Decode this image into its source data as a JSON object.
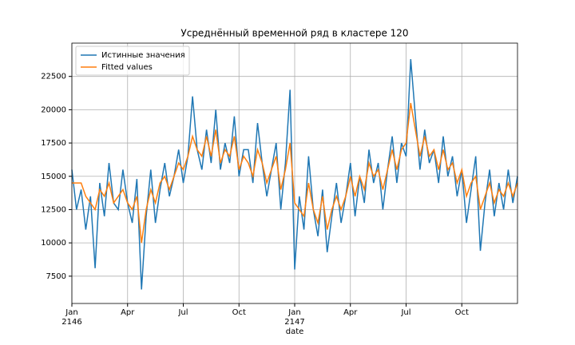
{
  "chart_data": {
    "type": "line",
    "title": "Усреднённый временной ряд в кластере 120",
    "xlabel": "date",
    "x": [
      0,
      0.25,
      0.5,
      0.75,
      1,
      1.25,
      1.5,
      1.75,
      2,
      2.25,
      2.5,
      2.75,
      3,
      3.25,
      3.5,
      3.75,
      4,
      4.25,
      4.5,
      4.75,
      5,
      5.25,
      5.5,
      5.75,
      6,
      6.25,
      6.5,
      6.75,
      7,
      7.25,
      7.5,
      7.75,
      8,
      8.25,
      8.5,
      8.75,
      9,
      9.25,
      9.5,
      9.75,
      10,
      10.25,
      10.5,
      10.75,
      11,
      11.25,
      11.5,
      11.75,
      12,
      12.25,
      12.5,
      12.75,
      13,
      13.25,
      13.5,
      13.75,
      14,
      14.25,
      14.5,
      14.75,
      15,
      15.25,
      15.5,
      15.75,
      16,
      16.25,
      16.5,
      16.75,
      17,
      17.25,
      17.5,
      17.75,
      18,
      18.25,
      18.5,
      18.75,
      19,
      19.25,
      19.5,
      19.75,
      20,
      20.25,
      20.5,
      20.75,
      21,
      21.25,
      21.5,
      21.75,
      22,
      22.25,
      22.5,
      22.75,
      23,
      23.25,
      23.5,
      23.75,
      24
    ],
    "series": [
      {
        "name": "Истинные значения",
        "color": "#1f77b4",
        "values": [
          15500,
          12500,
          14000,
          11000,
          13500,
          8100,
          14500,
          12000,
          16000,
          13000,
          12500,
          15500,
          13000,
          11500,
          14800,
          6500,
          12000,
          15500,
          11500,
          14000,
          16000,
          13500,
          15000,
          17000,
          14500,
          16500,
          21000,
          17000,
          15500,
          18500,
          16000,
          20000,
          15500,
          17500,
          16000,
          19500,
          15000,
          17000,
          17000,
          14500,
          19000,
          16000,
          13500,
          15500,
          17500,
          12500,
          16000,
          21500,
          8000,
          13500,
          11000,
          16500,
          12500,
          10500,
          14000,
          9300,
          12000,
          14500,
          11500,
          13500,
          16000,
          12000,
          15000,
          13000,
          17000,
          14500,
          16000,
          12500,
          15500,
          18000,
          14500,
          17500,
          16500,
          23800,
          19500,
          15500,
          18500,
          16000,
          17000,
          14500,
          18000,
          15000,
          16500,
          13500,
          15500,
          11500,
          14000,
          16500,
          9400,
          13000,
          15500,
          12000,
          14500,
          12500,
          15500,
          13000,
          15000
        ]
      },
      {
        "name": "Fitted values",
        "color": "#ff7f0e",
        "values": [
          14500,
          14500,
          14500,
          13500,
          13000,
          12500,
          14000,
          13500,
          14500,
          13000,
          13500,
          14000,
          13000,
          12500,
          13500,
          10000,
          12500,
          14000,
          13000,
          14500,
          15000,
          14000,
          15000,
          16000,
          15500,
          16500,
          18000,
          17000,
          16500,
          18000,
          16500,
          18500,
          16000,
          17000,
          16500,
          18000,
          15500,
          16500,
          16000,
          15000,
          17000,
          16000,
          14500,
          15500,
          16500,
          14000,
          15500,
          17500,
          13000,
          12500,
          12000,
          14500,
          12500,
          11500,
          13500,
          11000,
          12500,
          13500,
          12500,
          13500,
          15000,
          13500,
          15000,
          14000,
          16000,
          15000,
          15500,
          14000,
          15500,
          17000,
          15500,
          17000,
          17500,
          20500,
          18500,
          16500,
          18000,
          16500,
          17000,
          15500,
          17000,
          15500,
          16000,
          14500,
          15500,
          13500,
          14500,
          15000,
          12500,
          13500,
          14500,
          13000,
          14000,
          13500,
          14500,
          13500,
          14500
        ]
      }
    ],
    "xlim": [
      0,
      24
    ],
    "xticks": [
      {
        "value": 0,
        "label": "Jan\n2146"
      },
      {
        "value": 3,
        "label": "Apr"
      },
      {
        "value": 6,
        "label": "Jul"
      },
      {
        "value": 9,
        "label": "Oct"
      },
      {
        "value": 12,
        "label": "Jan\n2147"
      },
      {
        "value": 15,
        "label": "Apr"
      },
      {
        "value": 18,
        "label": "Jul"
      },
      {
        "value": 21,
        "label": "Oct"
      }
    ],
    "ylim": [
      5450,
      25000
    ],
    "yticks": [
      7500,
      10000,
      12500,
      15000,
      17500,
      20000,
      22500
    ],
    "grid": true,
    "legend": "upper left"
  }
}
